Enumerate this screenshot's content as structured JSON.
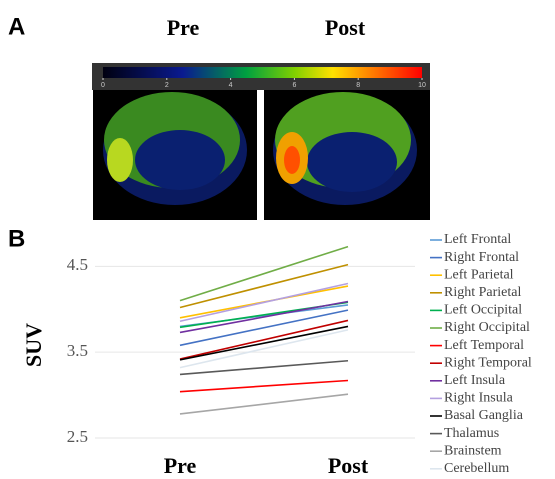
{
  "panels": {
    "a": "A",
    "b": "B"
  },
  "image_headers": [
    "Pre",
    "Post"
  ],
  "colorbar": {
    "ticks": [
      0,
      2,
      4,
      6,
      8,
      10
    ],
    "lim": [
      0,
      10
    ]
  },
  "chart_data": {
    "type": "line",
    "y_label": "SUV",
    "categories": [
      "Pre",
      "Post"
    ],
    "ylim": [
      2.5,
      4.9
    ],
    "yticks": [
      2.5,
      3.5,
      4.5
    ],
    "grid": true,
    "series": [
      {
        "name": "Left Frontal",
        "color": "#5b9bd5",
        "values": [
          3.8,
          4.05
        ]
      },
      {
        "name": "Right Frontal",
        "color": "#4472c4",
        "values": [
          3.58,
          3.99
        ]
      },
      {
        "name": "Left Parietal",
        "color": "#ffc000",
        "values": [
          3.9,
          4.27
        ]
      },
      {
        "name": "Right Parietal",
        "color": "#bf9000",
        "values": [
          4.02,
          4.52
        ]
      },
      {
        "name": "Left Occipital",
        "color": "#00b050",
        "values": [
          3.79,
          4.08
        ]
      },
      {
        "name": "Right Occipital",
        "color": "#70ad47",
        "values": [
          4.1,
          4.73
        ]
      },
      {
        "name": "Left Temporal",
        "color": "#ff0000",
        "values": [
          3.04,
          3.17
        ]
      },
      {
        "name": "Right Temporal",
        "color": "#c00000",
        "values": [
          3.42,
          3.87
        ]
      },
      {
        "name": "Left Insula",
        "color": "#7030a0",
        "values": [
          3.73,
          4.09
        ]
      },
      {
        "name": "Right Insula",
        "color": "#b4a0e0",
        "values": [
          3.86,
          4.3
        ]
      },
      {
        "name": "Basal Ganglia",
        "color": "#000000",
        "values": [
          3.41,
          3.8
        ]
      },
      {
        "name": "Thalamus",
        "color": "#595959",
        "values": [
          3.24,
          3.4
        ]
      },
      {
        "name": "Brainstem",
        "color": "#a6a6a6",
        "values": [
          2.78,
          3.01
        ]
      },
      {
        "name": "Cerebellum",
        "color": "#dde6ee",
        "values": [
          3.32,
          3.76
        ]
      }
    ]
  }
}
